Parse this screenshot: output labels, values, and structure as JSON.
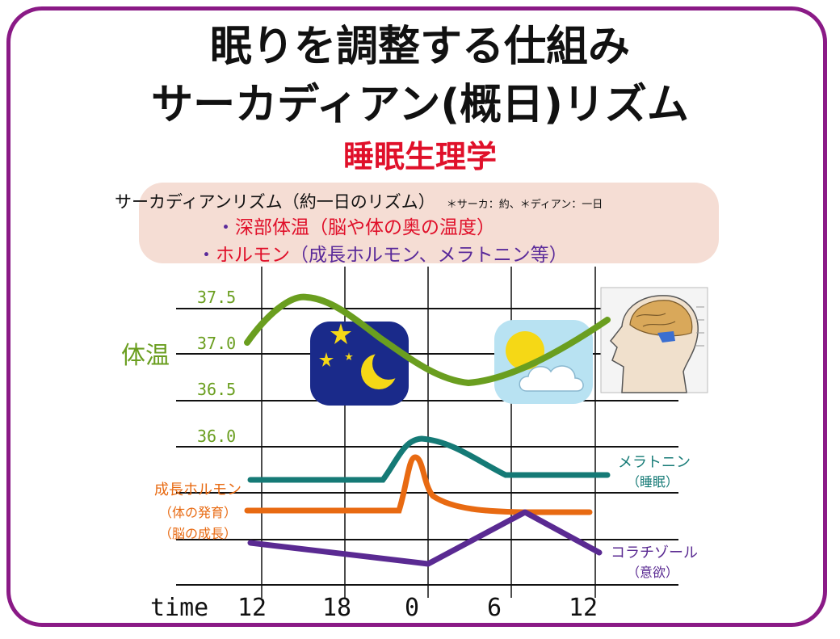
{
  "title_line1": "眠りを調整する仕組み",
  "title_line2": "サーカディアン(概日)リズム",
  "subtitle": "睡眠生理学",
  "info": {
    "line1": "サーカディアンリズム（約一日のリズム）",
    "line1_note": "＊サーカ：約、＊ディアン：一日",
    "line2_bullet": "・",
    "line2_text": "深部体温（脳や体の奥の温度）",
    "line3_bullet": "・",
    "line3_head": "ホルモン",
    "line3_rest": "（成長ホルモン、メラトニン等）"
  },
  "chart": {
    "y_ticks": [
      "37.5",
      "37.0",
      "36.5",
      "36.0"
    ],
    "y_label": "体温",
    "x_axis_label": "time",
    "x_ticks": [
      "12",
      "18",
      "0",
      "6",
      "12"
    ],
    "labels": {
      "melatonin": "メラトニン",
      "melatonin_sub": "（睡眠）",
      "gh": "成長ホルモン",
      "gh_sub1": "（体の発育）",
      "gh_sub2": "（脳の成長）",
      "cortisol": "コラチゾール",
      "cortisol_sub": "（意欲）"
    },
    "colors": {
      "temperature": "#6a9e1f",
      "melatonin": "#157a76",
      "growth_hormone": "#e86a12",
      "cortisol": "#5a2a92",
      "frame": "#8a1a86"
    },
    "icons": [
      "night-moon-stars-icon",
      "day-sun-cloud-icon",
      "brain-head-illustration"
    ]
  }
}
